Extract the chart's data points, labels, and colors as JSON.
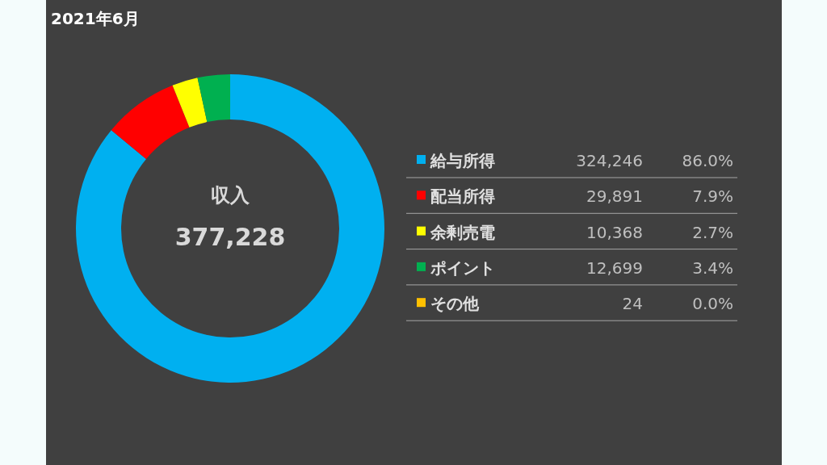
{
  "chart_data": {
    "type": "donut",
    "title": "2021年6月",
    "categories": [
      "給与所得",
      "配当所得",
      "余剰売電",
      "ポイント",
      "その他"
    ],
    "values": [
      86.0,
      7.9,
      2.7,
      3.4,
      0.0
    ],
    "colors": [
      "#00b0f0",
      "#ff0000",
      "#ffff00",
      "#00b050",
      "#ffc000"
    ],
    "value_labels": [
      "86.0%",
      "7.9%",
      "2.7%",
      "3.4%",
      "0.0%"
    ],
    "annotations": [
      "収入",
      "377,228",
      "324,246",
      "29,891",
      "10,368",
      "12,699",
      "24"
    ],
    "legend": "right"
  }
}
